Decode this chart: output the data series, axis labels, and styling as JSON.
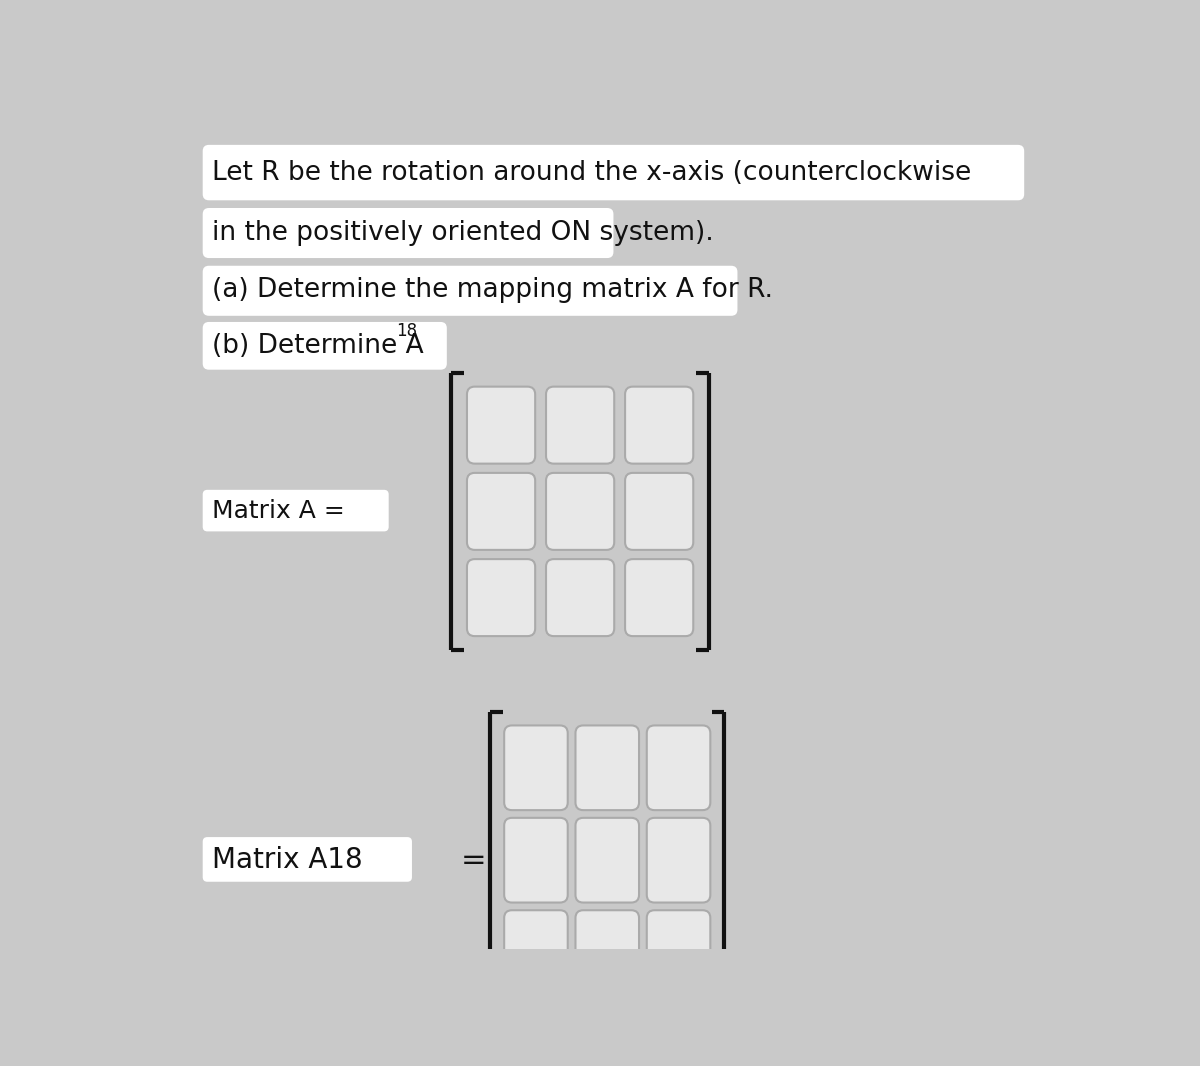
{
  "bg_color": "#c9c9c9",
  "white_box_color": "#ffffff",
  "cell_bg_color": "#e8e8e8",
  "cell_border_color": "#aaaaaa",
  "bracket_color": "#111111",
  "text_color": "#111111",
  "line1": "Let R be the rotation around the x-axis (counterclockwise",
  "line2": "in the positively oriented ON system).",
  "line3": "(a) Determine the mapping matrix A for R.",
  "line4_main": "(b) Determine A",
  "line4_sup": "18",
  "label_A": "Matrix A =",
  "label_A18": "Matrix A18",
  "matrix_rows": 3,
  "matrix_cols": 3,
  "figsize": [
    12.0,
    10.66
  ],
  "dpi": 100
}
